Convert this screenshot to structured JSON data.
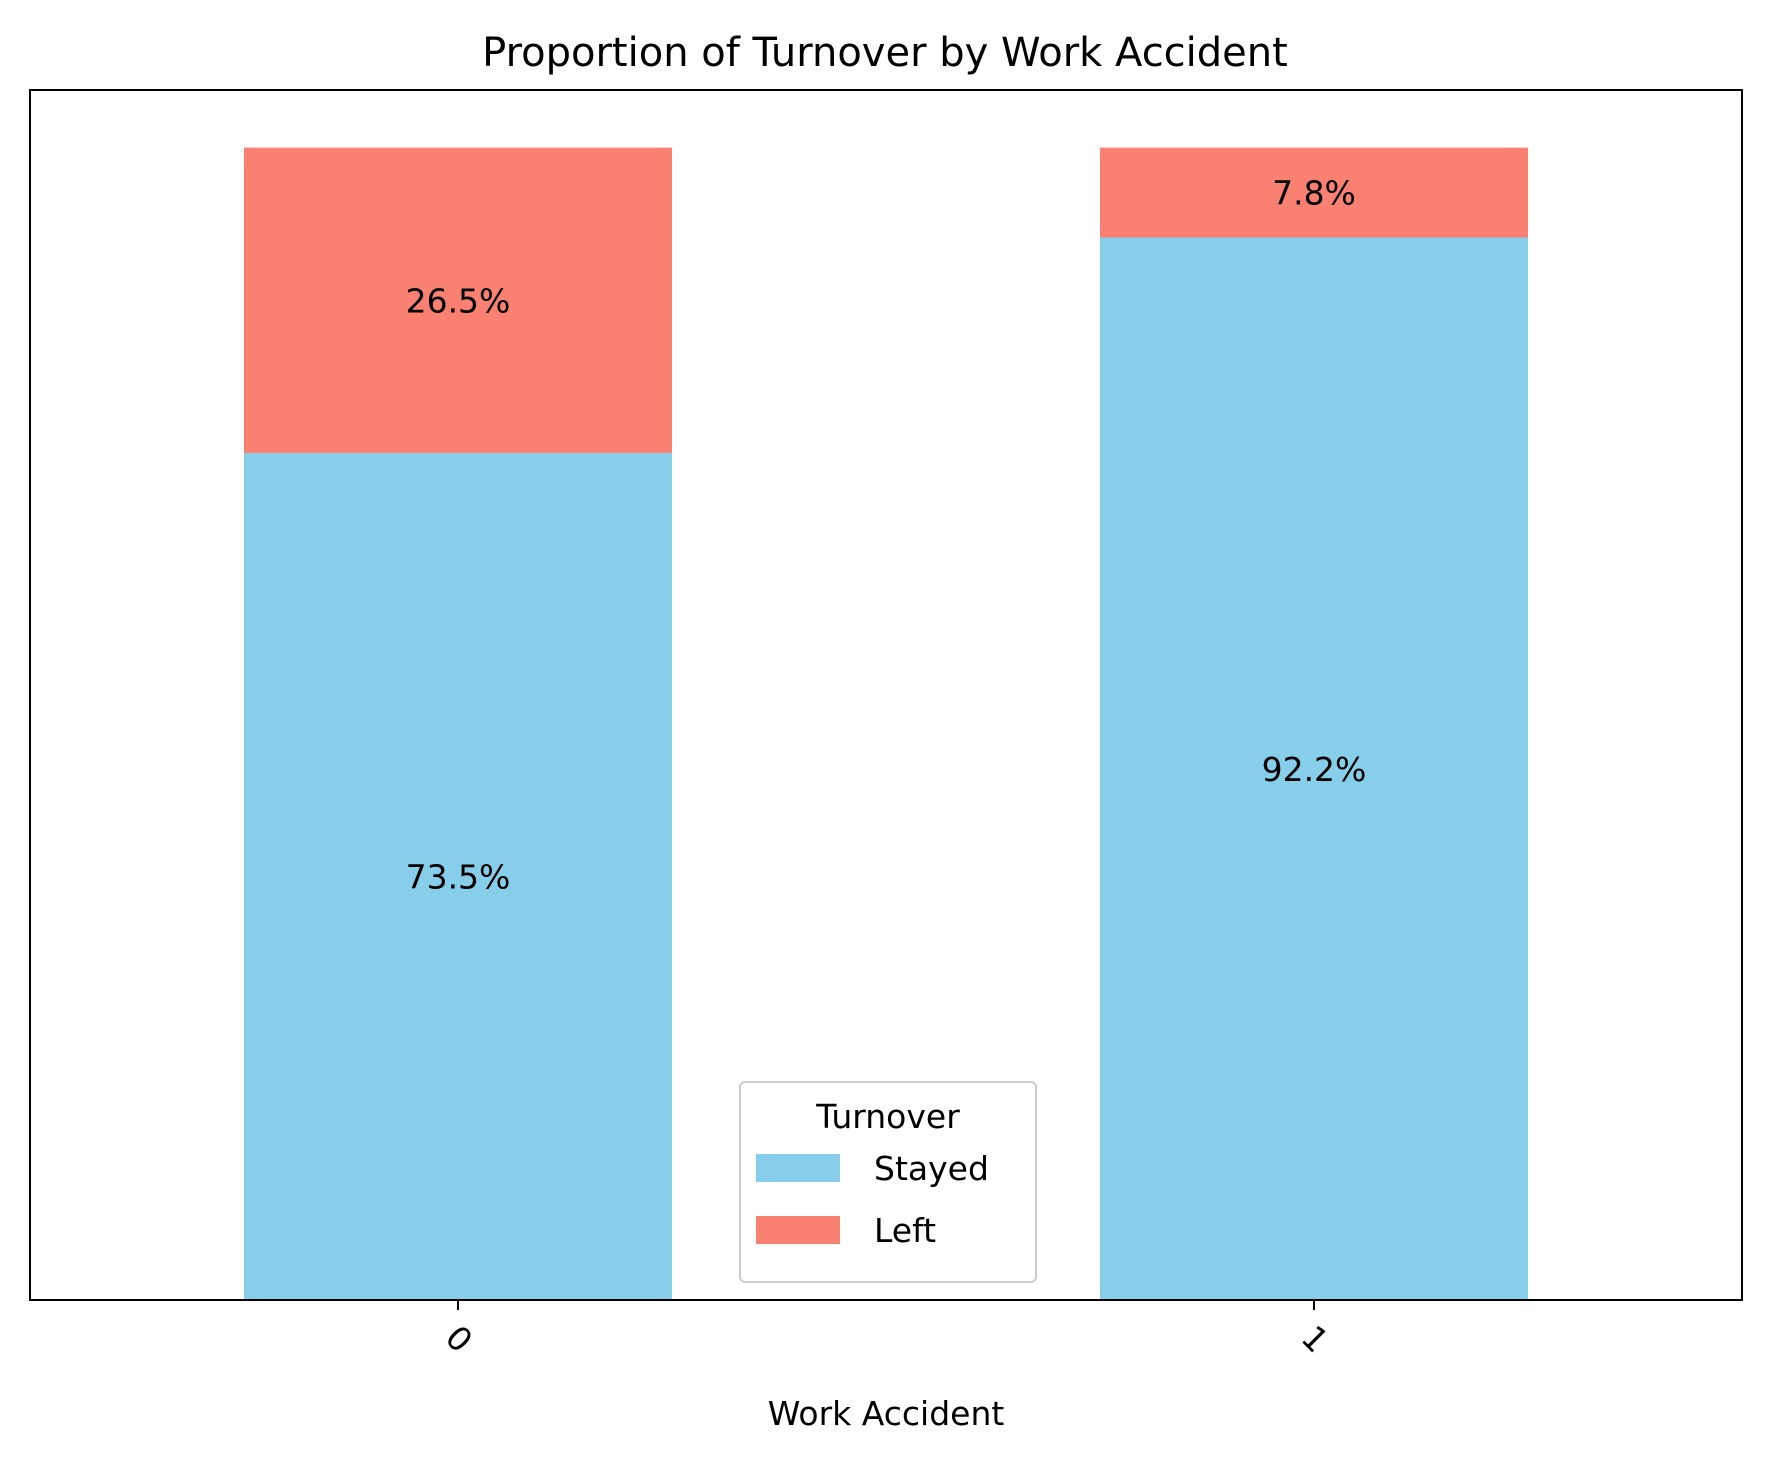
{
  "chart_data": {
    "type": "bar",
    "stacked": true,
    "title": "Proportion of Turnover by Work Accident",
    "xlabel": "Work Accident",
    "ylabel": "",
    "categories": [
      "0",
      "1"
    ],
    "series": [
      {
        "name": "Stayed",
        "values": [
          73.5,
          92.2
        ],
        "labels": [
          "73.5%",
          "92.2%"
        ],
        "color": "#87CEEB"
      },
      {
        "name": "Left",
        "values": [
          26.5,
          7.8
        ],
        "labels": [
          "26.5%",
          "7.8%"
        ],
        "color": "#FA8072"
      }
    ],
    "ylim": [
      0,
      105
    ],
    "yaxis_visible": false,
    "grid": false,
    "legend": {
      "title": "Turnover",
      "placement": "lower-center"
    }
  }
}
